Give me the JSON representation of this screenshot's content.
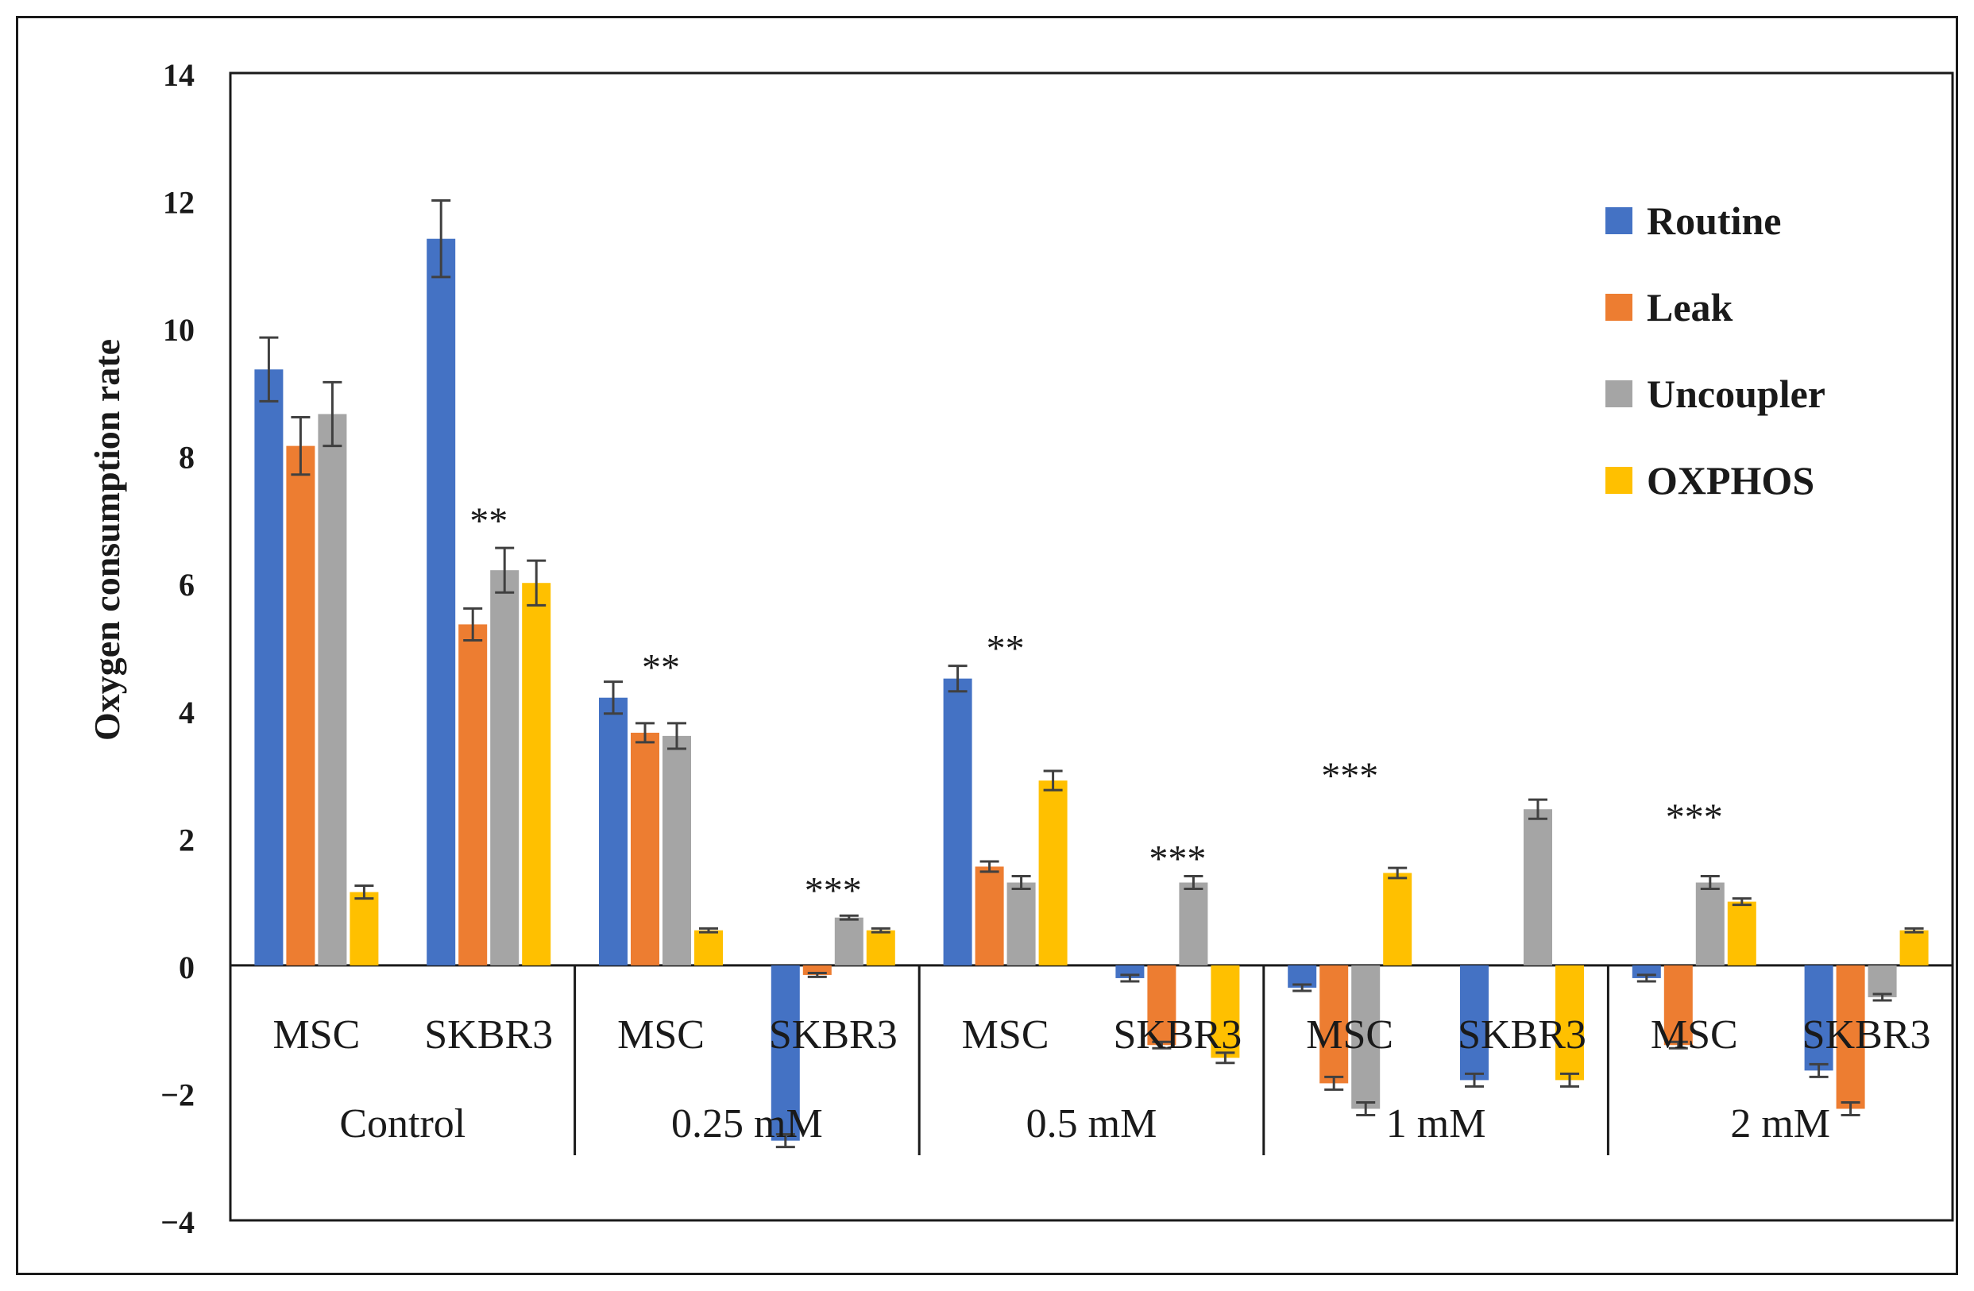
{
  "chart_data": {
    "type": "bar",
    "ylabel": "Oxygen consumption rate",
    "ylim": [
      -4,
      14
    ],
    "yticks": [
      -4,
      -2,
      0,
      2,
      4,
      6,
      8,
      10,
      12,
      14
    ],
    "ytick_labels": [
      "−4",
      "−2",
      "0",
      "2",
      "4",
      "6",
      "8",
      "10",
      "12",
      "14"
    ],
    "groups": [
      {
        "label": "Control",
        "categories": [
          "MSC",
          "SKBR3"
        ]
      },
      {
        "label": "0.25 mM",
        "categories": [
          "MSC",
          "SKBR3"
        ]
      },
      {
        "label": "0.5 mM",
        "categories": [
          "MSC",
          "SKBR3"
        ]
      },
      {
        "label": "1 mM",
        "categories": [
          "MSC",
          "SKBR3"
        ]
      },
      {
        "label": "2 mM",
        "categories": [
          "MSC",
          "SKBR3"
        ]
      }
    ],
    "series": [
      {
        "name": "Routine",
        "color": "#4472C4",
        "values": [
          9.35,
          11.4,
          4.2,
          -2.75,
          4.5,
          -0.2,
          -0.35,
          -1.8,
          -0.2,
          -1.65
        ],
        "errors": [
          0.5,
          0.6,
          0.25,
          0.1,
          0.2,
          0.05,
          0.05,
          0.1,
          0.05,
          0.1
        ]
      },
      {
        "name": "Leak",
        "color": "#ED7D31",
        "values": [
          8.15,
          5.35,
          3.65,
          -0.15,
          1.55,
          -1.25,
          -1.85,
          0,
          -1.25,
          -2.25
        ],
        "errors": [
          0.45,
          0.25,
          0.15,
          0.03,
          0.08,
          0.05,
          0.1,
          0,
          0.05,
          0.1
        ]
      },
      {
        "name": "Uncoupler",
        "color": "#A5A5A5",
        "values": [
          8.65,
          6.2,
          3.6,
          0.75,
          1.3,
          1.3,
          -2.25,
          2.45,
          1.3,
          -0.5
        ],
        "errors": [
          0.5,
          0.35,
          0.2,
          0.03,
          0.1,
          0.1,
          0.1,
          0.15,
          0.1,
          0.05
        ]
      },
      {
        "name": "OXPHOS",
        "color": "#FFC000",
        "values": [
          1.15,
          6.0,
          0.55,
          0.55,
          2.9,
          -1.45,
          1.45,
          -1.8,
          1.0,
          0.55
        ],
        "errors": [
          0.1,
          0.35,
          0.03,
          0.03,
          0.15,
          0.08,
          0.08,
          0.1,
          0.05,
          0.03
        ]
      }
    ],
    "annotations": [
      {
        "text": "**",
        "category_index": 1,
        "y": 7.1
      },
      {
        "text": "**",
        "category_index": 2,
        "y": 4.8
      },
      {
        "text": "***",
        "category_index": 3,
        "y": 1.3
      },
      {
        "text": "**",
        "category_index": 4,
        "y": 5.1
      },
      {
        "text": "***",
        "category_index": 5,
        "y": 1.8
      },
      {
        "text": "***",
        "category_index": 6,
        "y": 3.1
      },
      {
        "text": "***",
        "category_index": 8,
        "y": 2.45
      }
    ],
    "legend": {
      "position": "top-right",
      "entries": [
        "Routine",
        "Leak",
        "Uncoupler",
        "OXPHOS"
      ]
    }
  }
}
